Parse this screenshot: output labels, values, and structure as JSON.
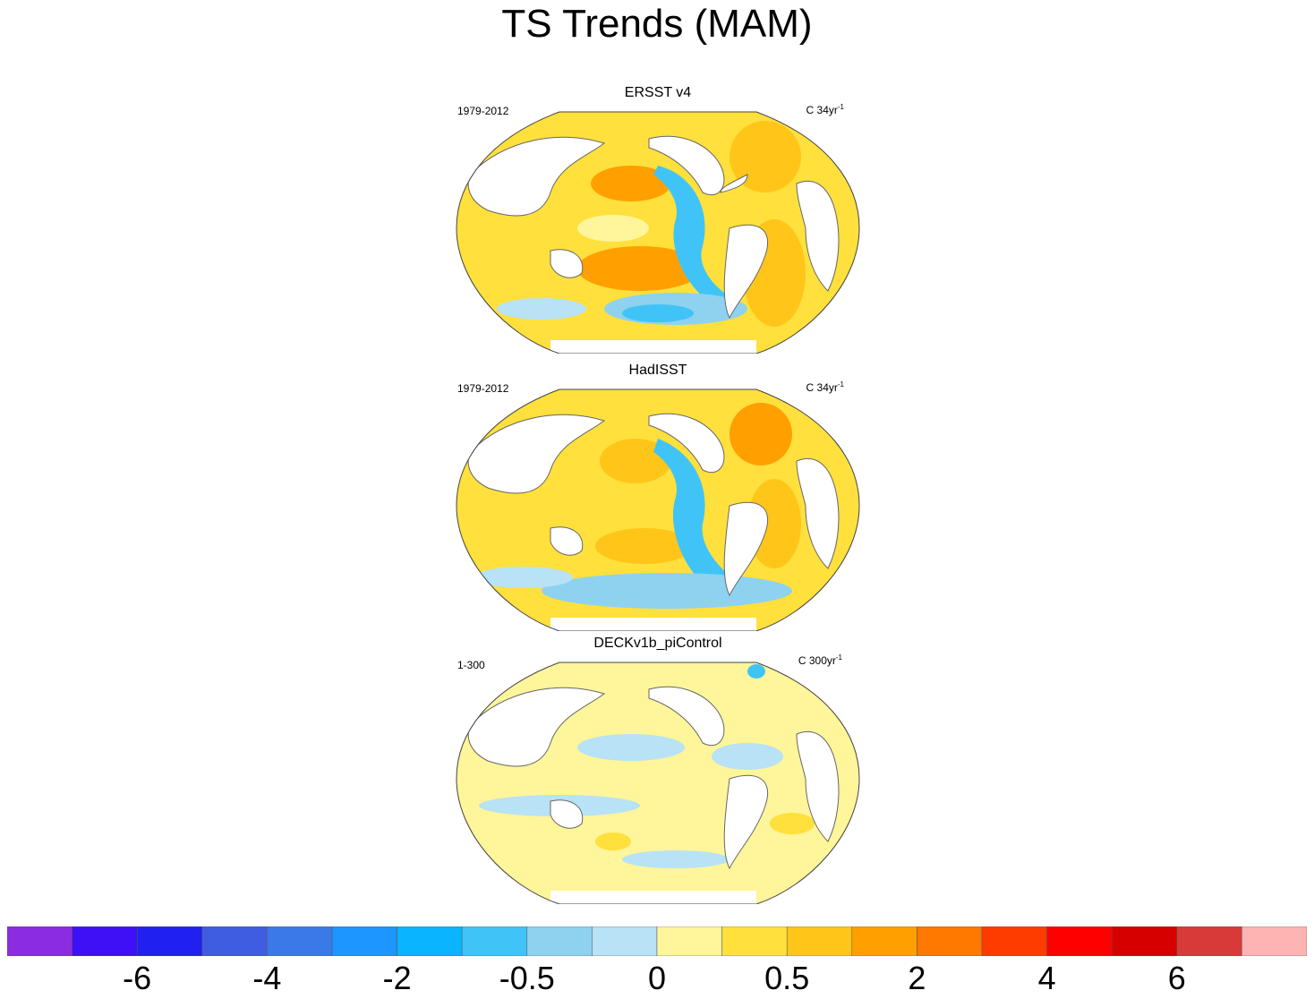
{
  "title": "TS Trends (MAM)",
  "panels": [
    {
      "title": "ERSST v4",
      "period": "1979-2012",
      "units_prefix": "C 34yr",
      "units_sup": "-1"
    },
    {
      "title": "HadISST",
      "period": "1979-2012",
      "units_prefix": "C 34yr",
      "units_sup": "-1"
    },
    {
      "title": "DECKv1b_piControl",
      "period": "1-300",
      "units_prefix": "C 300yr",
      "units_sup": "-1"
    }
  ],
  "colorbar": {
    "colors": [
      "#8b2be2",
      "#3e10f5",
      "#2020f0",
      "#3f5de0",
      "#3a7ae8",
      "#1e96ff",
      "#0ab4ff",
      "#40c4f8",
      "#8ed2f0",
      "#b8e2f5",
      "#fff59a",
      "#ffe03c",
      "#ffc619",
      "#ffa000",
      "#ff7800",
      "#ff3c00",
      "#ff0000",
      "#d60000",
      "#d83a3a",
      "#ffb4b4"
    ],
    "tick_labels": [
      "-6",
      "-4",
      "-2",
      "-0.5",
      "0",
      "0.5",
      "2",
      "4",
      "6"
    ],
    "tick_boundaries": [
      2,
      4,
      6,
      8,
      10,
      12,
      14,
      16,
      18
    ]
  }
}
